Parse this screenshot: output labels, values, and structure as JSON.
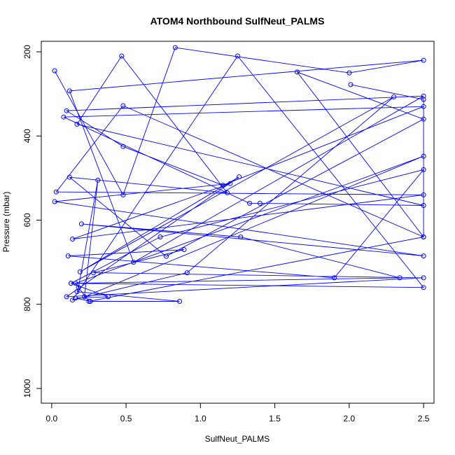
{
  "chart_data": {
    "type": "line",
    "title": "ATOM4 Northbound SulfNeut_PALMS",
    "xlabel": "SulfNeut_PALMS",
    "ylabel": "Pressure (mbar)",
    "xlim": [
      -0.07,
      2.57
    ],
    "ylim": [
      1035,
      175
    ],
    "y_reversed": true,
    "x_ticks": [
      0.0,
      0.5,
      1.0,
      1.5,
      2.0,
      2.5
    ],
    "x_tick_labels": [
      "0.0",
      "0.5",
      "1.0",
      "1.5",
      "2.0",
      "2.5"
    ],
    "y_ticks": [
      200,
      400,
      600,
      800,
      1000
    ],
    "y_tick_labels": [
      "200",
      "400",
      "600",
      "800",
      "1000"
    ],
    "grid": false,
    "legend": "none",
    "series_color": "#0000ff",
    "marker": "open-circle",
    "series": [
      {
        "x": [
          0.02,
          0.48,
          0.83,
          2.0,
          2.5,
          0.12,
          0.55,
          2.5,
          0.1,
          0.48,
          1.15,
          2.5,
          0.08,
          1.33,
          1.4,
          2.5,
          0.17,
          0.47,
          1.18,
          0.12,
          0.77,
          2.5,
          1.65,
          2.5,
          0.48,
          0.03,
          2.5,
          0.14,
          1.2,
          0.02,
          2.5,
          0.2,
          1.27,
          2.34,
          0.13,
          0.73,
          2.5,
          1.9,
          0.11,
          0.89,
          0.28,
          2.5,
          0.1,
          1.26,
          0.19,
          2.3,
          0.91,
          0.14,
          1.25,
          2.5,
          0.13,
          0.38,
          0.16,
          0.26,
          0.86,
          0.17,
          0.18,
          0.31,
          0.22,
          2.5,
          0.16,
          0.25,
          2.5,
          2.5,
          2.01
        ],
        "y": [
          245,
          540,
          190,
          250,
          220,
          293,
          700,
          305,
          340,
          425,
          517,
          330,
          355,
          560,
          560,
          565,
          372,
          210,
          535,
          498,
          686,
          360,
          248,
          640,
          328,
          533,
          540,
          645,
          513,
          556,
          685,
          609,
          640,
          737,
          750,
          640,
          480,
          737,
          685,
          670,
          725,
          737,
          782,
          497,
          723,
          307,
          725,
          790,
          210,
          760,
          750,
          782,
          785,
          793,
          793,
          770,
          760,
          505,
          782,
          448,
          750,
          793,
          640,
          313,
          278
        ]
      }
    ]
  }
}
